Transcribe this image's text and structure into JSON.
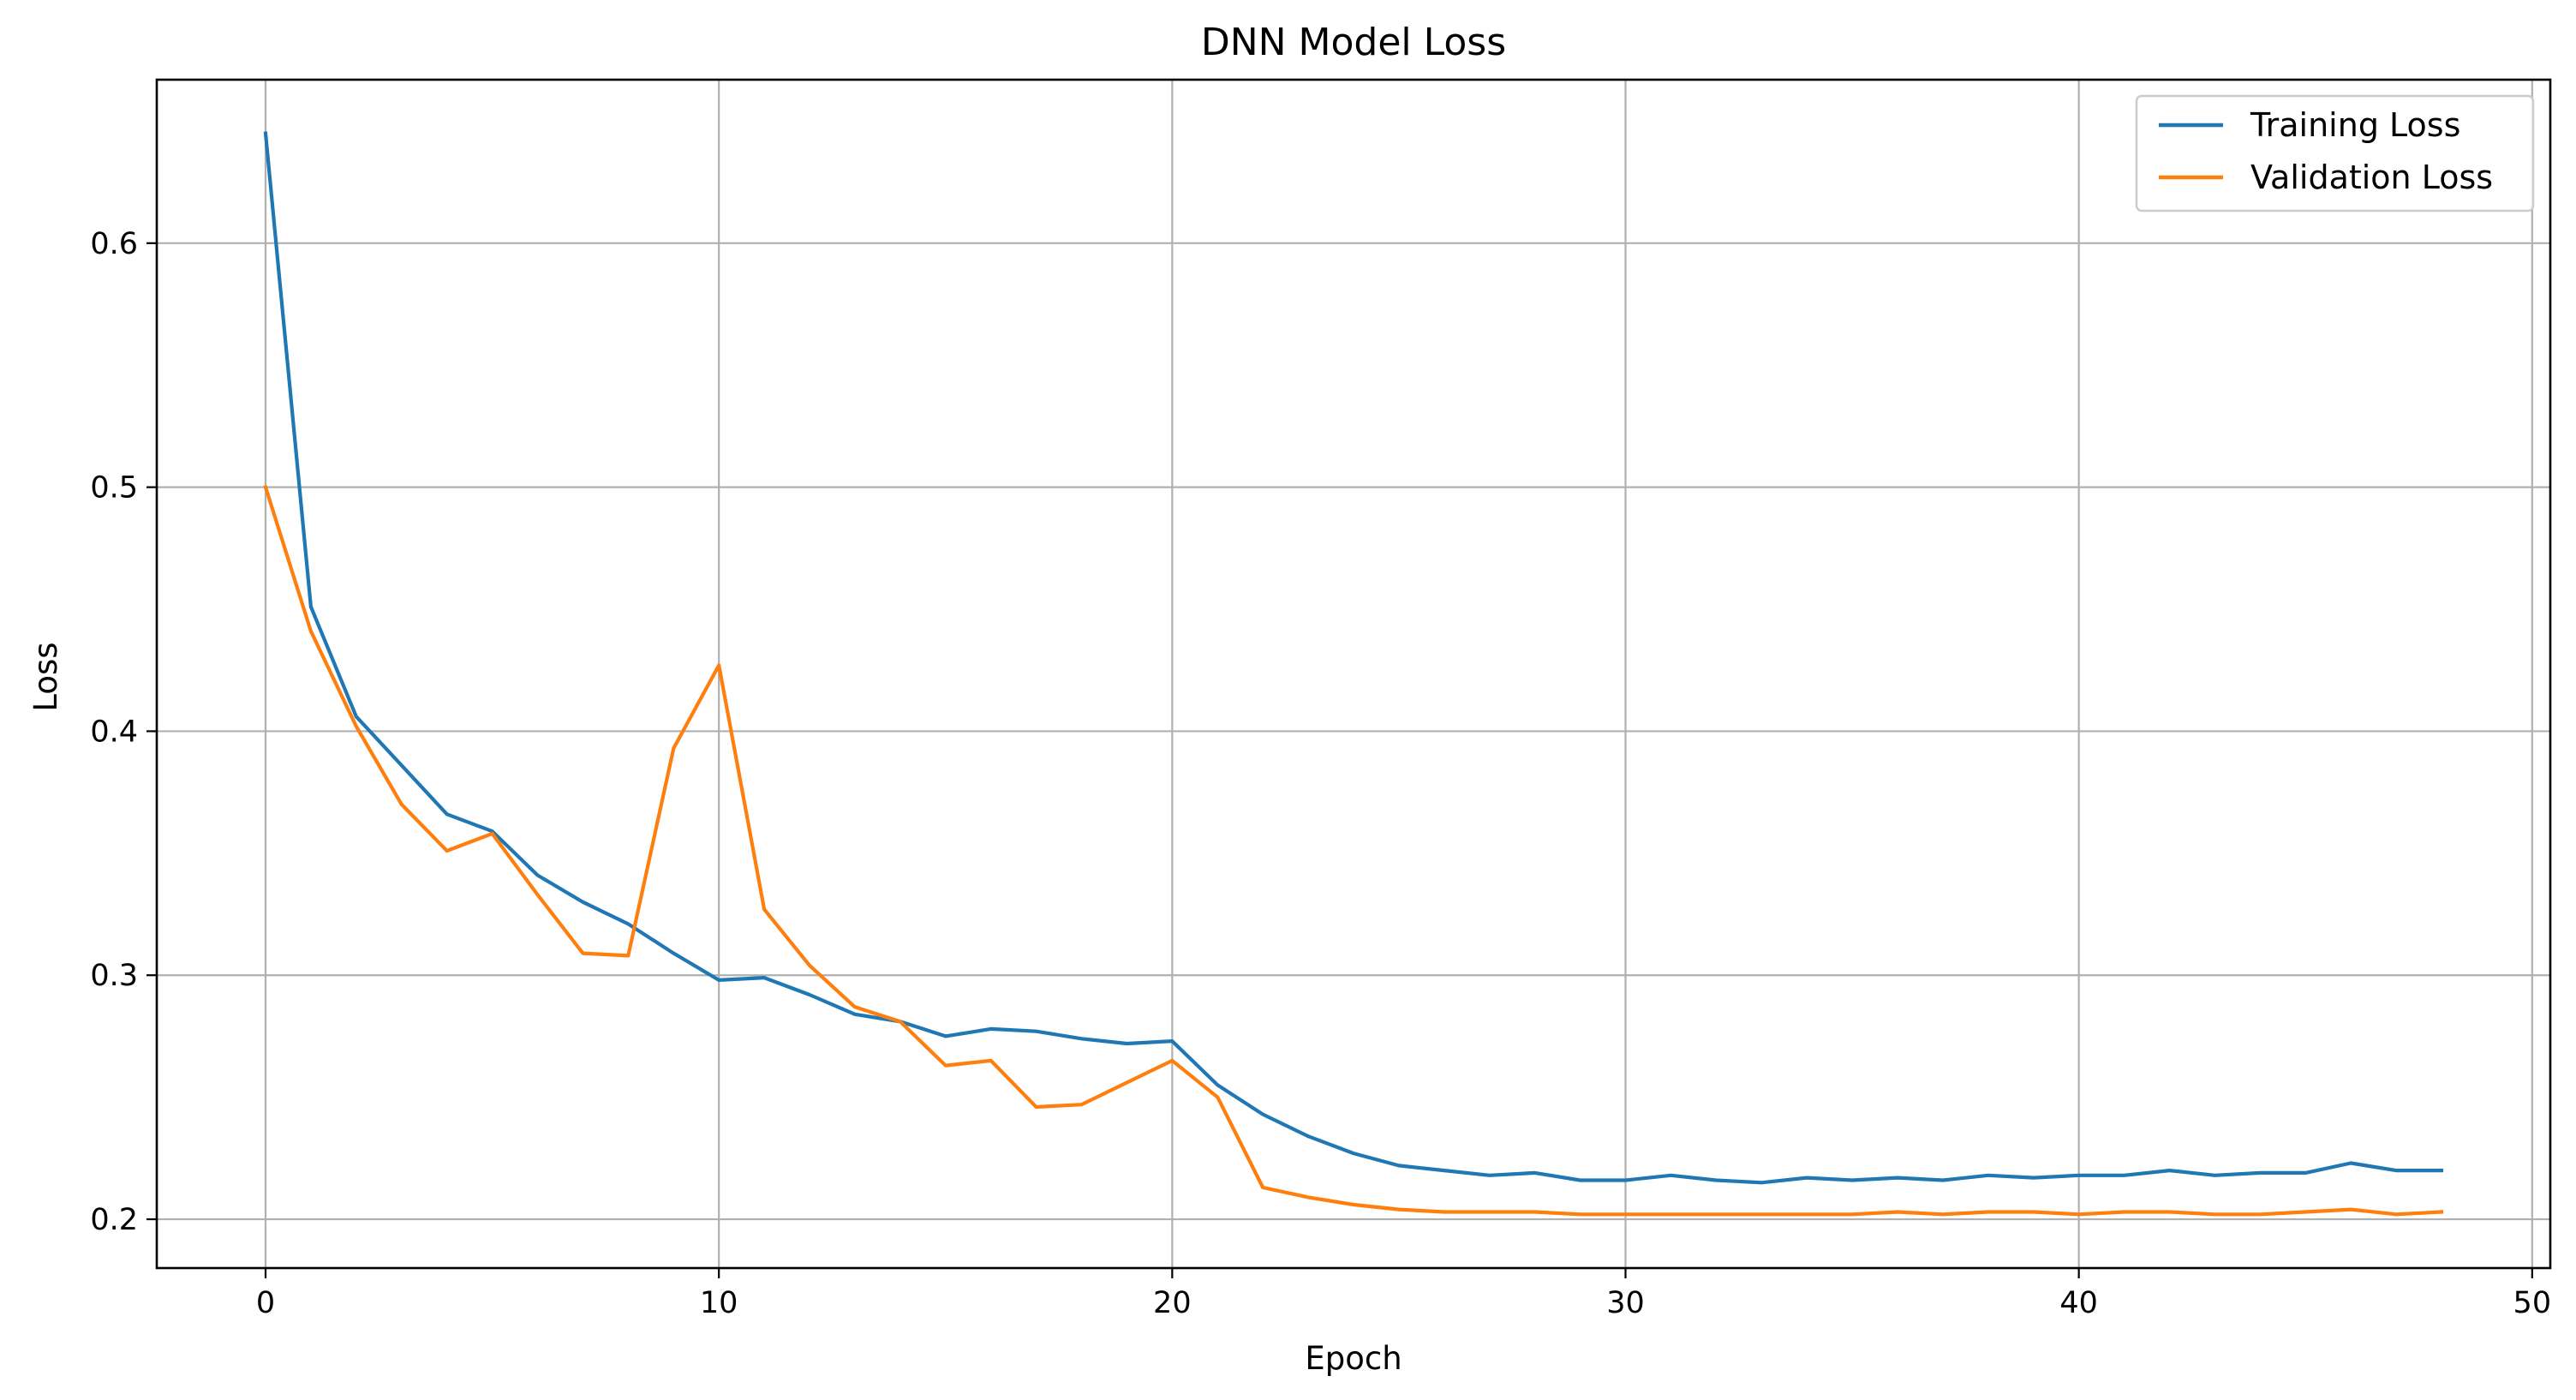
{
  "chart_data": {
    "type": "line",
    "title": "DNN Model Loss",
    "xlabel": "Epoch",
    "ylabel": "Loss",
    "xlim": [
      -2.4,
      50.4
    ],
    "ylim": [
      0.18,
      0.667
    ],
    "xticks": [
      0,
      10,
      20,
      30,
      40,
      50
    ],
    "xtick_labels": [
      "0",
      "10",
      "20",
      "30",
      "40",
      "50"
    ],
    "yticks": [
      0.2,
      0.3,
      0.4,
      0.5,
      0.6
    ],
    "ytick_labels": [
      "0.2",
      "0.3",
      "0.4",
      "0.5",
      "0.6"
    ],
    "grid": true,
    "legend_position": "top-right",
    "x": [
      0,
      1,
      2,
      3,
      4,
      5,
      6,
      7,
      8,
      9,
      10,
      11,
      12,
      13,
      14,
      15,
      16,
      17,
      18,
      19,
      20,
      21,
      22,
      23,
      24,
      25,
      26,
      27,
      28,
      29,
      30,
      31,
      32,
      33,
      34,
      35,
      36,
      37,
      38,
      39,
      40,
      41,
      42,
      43,
      44,
      45,
      46,
      47,
      48
    ],
    "series": [
      {
        "name": "Training Loss",
        "color": "#1f77b4",
        "values": [
          0.645,
          0.451,
          0.406,
          0.386,
          0.366,
          0.359,
          0.341,
          0.33,
          0.321,
          0.309,
          0.298,
          0.299,
          0.292,
          0.284,
          0.281,
          0.275,
          0.278,
          0.277,
          0.274,
          0.272,
          0.273,
          0.255,
          0.243,
          0.234,
          0.227,
          0.222,
          0.22,
          0.218,
          0.219,
          0.216,
          0.216,
          0.218,
          0.216,
          0.215,
          0.217,
          0.216,
          0.217,
          0.216,
          0.218,
          0.217,
          0.218,
          0.218,
          0.22,
          0.218,
          0.219,
          0.219,
          0.223,
          0.22,
          0.22
        ]
      },
      {
        "name": "Validation Loss",
        "color": "#ff7f0e",
        "values": [
          0.5,
          0.441,
          0.402,
          0.37,
          0.351,
          0.358,
          0.333,
          0.309,
          0.308,
          0.393,
          0.427,
          0.327,
          0.304,
          0.287,
          0.281,
          0.263,
          0.265,
          0.246,
          0.247,
          0.256,
          0.265,
          0.25,
          0.213,
          0.209,
          0.206,
          0.204,
          0.203,
          0.203,
          0.203,
          0.202,
          0.202,
          0.202,
          0.202,
          0.202,
          0.202,
          0.202,
          0.203,
          0.202,
          0.203,
          0.203,
          0.202,
          0.203,
          0.203,
          0.202,
          0.202,
          0.203,
          0.204,
          0.202,
          0.203
        ]
      }
    ]
  }
}
